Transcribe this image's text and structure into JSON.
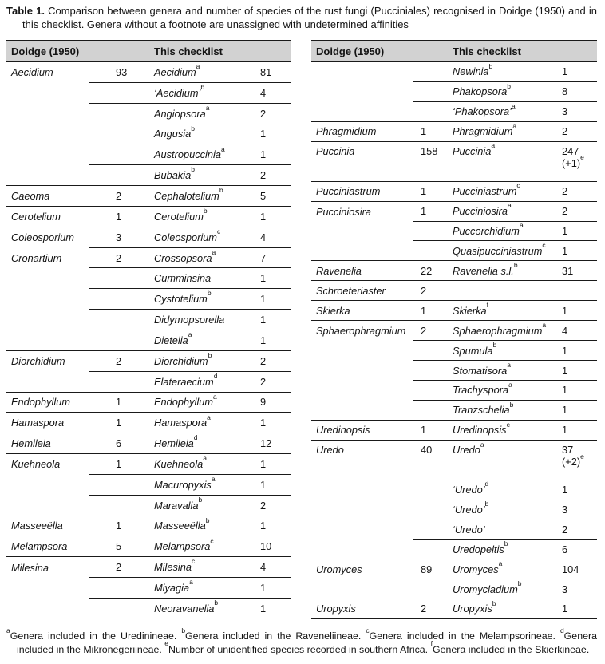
{
  "colors": {
    "header_bg": "#d2d2d2",
    "rule": "#1a1a1a",
    "text": "#141414",
    "page_bg": "#ffffff"
  },
  "caption": {
    "label": "Table 1.",
    "text": "Comparison between genera and number of species of the rust fungi (Pucciniales) recognised in Doidge (1950) and in this checklist. Genera without a footnote are unassigned with undetermined affinities"
  },
  "header": {
    "doidge": "Doidge (1950)",
    "checklist": "This checklist"
  },
  "left_table": {
    "rows": [
      {
        "d_genus": "Aecidium",
        "d_count": "93",
        "c_genus": "Aecidium",
        "c_sup": "a",
        "c_count": "81",
        "line": "partial"
      },
      {
        "d_genus": "",
        "d_count": "",
        "c_genus": "‘Aecidium’",
        "c_sup": "b",
        "c_count": "4",
        "line": "partial"
      },
      {
        "d_genus": "",
        "d_count": "",
        "c_genus": "Angiopsora",
        "c_sup": "a",
        "c_count": "2",
        "line": "partial"
      },
      {
        "d_genus": "",
        "d_count": "",
        "c_genus": "Angusia",
        "c_sup": "b",
        "c_count": "1",
        "line": "partial"
      },
      {
        "d_genus": "",
        "d_count": "",
        "c_genus": "Austropuccinia",
        "c_sup": "a",
        "c_count": "1",
        "line": "partial"
      },
      {
        "d_genus": "",
        "d_count": "",
        "c_genus": "Bubakia",
        "c_sup": "b",
        "c_count": "2",
        "line": "full"
      },
      {
        "d_genus": "Caeoma",
        "d_count": "2",
        "c_genus": "Cephalotelium",
        "c_sup": "b",
        "c_count": "5",
        "line": "full"
      },
      {
        "d_genus": "Cerotelium",
        "d_count": "1",
        "c_genus": "Cerotelium",
        "c_sup": "b",
        "c_count": "1",
        "line": "full"
      },
      {
        "d_genus": "Coleosporium",
        "d_count": "3",
        "c_genus": "Coleosporium",
        "c_sup": "c",
        "c_count": "4",
        "line": "partial"
      },
      {
        "d_genus": "Cronartium",
        "d_count": "2",
        "c_genus": "Crossopsora",
        "c_sup": "a",
        "c_count": "7",
        "line": "partial"
      },
      {
        "d_genus": "",
        "d_count": "",
        "c_genus": "Cumminsina",
        "c_sup": "",
        "c_count": "1",
        "line": "partial"
      },
      {
        "d_genus": "",
        "d_count": "",
        "c_genus": "Cystotelium",
        "c_sup": "b",
        "c_count": "1",
        "line": "partial"
      },
      {
        "d_genus": "",
        "d_count": "",
        "c_genus": "Didymopsorella",
        "c_sup": "",
        "c_count": "1",
        "line": "partial"
      },
      {
        "d_genus": "",
        "d_count": "",
        "c_genus": "Dietelia",
        "c_sup": "a",
        "c_count": "1",
        "line": "full"
      },
      {
        "d_genus": "Diorchidium",
        "d_count": "2",
        "c_genus": "Diorchidium",
        "c_sup": "b",
        "c_count": "2",
        "line": "partial"
      },
      {
        "d_genus": "",
        "d_count": "",
        "c_genus": "Elateraecium",
        "c_sup": "d",
        "c_count": "2",
        "line": "full"
      },
      {
        "d_genus": "Endophyllum",
        "d_count": "1",
        "c_genus": "Endophyllum",
        "c_sup": "a",
        "c_count": "9",
        "line": "full"
      },
      {
        "d_genus": "Hamaspora",
        "d_count": "1",
        "c_genus": "Hamaspora",
        "c_sup": "a",
        "c_count": "1",
        "line": "full"
      },
      {
        "d_genus": "Hemileia",
        "d_count": "6",
        "c_genus": "Hemileia",
        "c_sup": "d",
        "c_count": "12",
        "line": "full"
      },
      {
        "d_genus": "Kuehneola",
        "d_count": "1",
        "c_genus": "Kuehneola",
        "c_sup": "a",
        "c_count": "1",
        "line": "partial"
      },
      {
        "d_genus": "",
        "d_count": "",
        "c_genus": "Macuropyxis",
        "c_sup": "a",
        "c_count": "1",
        "line": "partial"
      },
      {
        "d_genus": "",
        "d_count": "",
        "c_genus": "Maravalia",
        "c_sup": "b",
        "c_count": "2",
        "line": "full"
      },
      {
        "d_genus": "Masseeëlla",
        "d_count": "1",
        "c_genus": "Masseeëlla",
        "c_sup": "b",
        "c_count": "1",
        "line": "full"
      },
      {
        "d_genus": "Melampsora",
        "d_count": "5",
        "c_genus": "Melampsora",
        "c_sup": "c",
        "c_count": "10",
        "line": "full"
      },
      {
        "d_genus": "Milesina",
        "d_count": "2",
        "c_genus": "Milesina",
        "c_sup": "c",
        "c_count": "4",
        "line": "partial"
      },
      {
        "d_genus": "",
        "d_count": "",
        "c_genus": "Miyagia",
        "c_sup": "a",
        "c_count": "1",
        "line": "partial"
      },
      {
        "d_genus": "",
        "d_count": "",
        "c_genus": "Neoravanelia",
        "c_sup": "b",
        "c_count": "1",
        "line": "partial"
      }
    ]
  },
  "right_table": {
    "rows": [
      {
        "d_genus": "",
        "d_count": "",
        "c_genus": "Newinia",
        "c_sup": "b",
        "c_count": "1",
        "line": "partial"
      },
      {
        "d_genus": "",
        "d_count": "",
        "c_genus": "Phakopsora",
        "c_sup": "b",
        "c_count": "8",
        "line": "partial"
      },
      {
        "d_genus": "",
        "d_count": "",
        "c_genus": "‘Phakopsora’",
        "c_sup": "a",
        "c_count": "3",
        "line": "full"
      },
      {
        "d_genus": "Phragmidium",
        "d_count": "1",
        "c_genus": "Phragmidium",
        "c_sup": "a",
        "c_count": "2",
        "line": "full"
      },
      {
        "d_genus": "Puccinia",
        "d_count": "158",
        "c_genus": "Puccinia",
        "c_sup": "a",
        "c_count": "247",
        "c_count2": "(+1)",
        "c_sup2": "e",
        "line": "full",
        "tall": true
      },
      {
        "d_genus": "Pucciniastrum",
        "d_count": "1",
        "c_genus": "Pucciniastrum",
        "c_sup": "c",
        "c_count": "2",
        "line": "full"
      },
      {
        "d_genus": "Pucciniosira",
        "d_count": "1",
        "c_genus": "Pucciniosira",
        "c_sup": "a",
        "c_count": "2",
        "line": "partial"
      },
      {
        "d_genus": "",
        "d_count": "",
        "c_genus": "Puccorchidium",
        "c_sup": "a",
        "c_count": "1",
        "line": "partial"
      },
      {
        "d_genus": "",
        "d_count": "",
        "c_genus": "Quasipucciniastrum",
        "c_sup": "c",
        "c_count": "1",
        "line": "full"
      },
      {
        "d_genus": "Ravenelia",
        "d_count": "22",
        "c_genus": "Ravenelia s.l.",
        "c_sup": "b",
        "c_count": "31",
        "line": "full"
      },
      {
        "d_genus": "Schroeteriaster",
        "d_count": "2",
        "c_genus": "",
        "c_sup": "",
        "c_count": "",
        "line": "full"
      },
      {
        "d_genus": "Skierka",
        "d_count": "1",
        "c_genus": "Skierka",
        "c_sup": "f",
        "c_count": "1",
        "line": "full"
      },
      {
        "d_genus": "Sphaerophragmium",
        "d_count": "2",
        "c_genus": "Sphaerophragmium",
        "c_sup": "a",
        "c_count": "4",
        "line": "partial"
      },
      {
        "d_genus": "",
        "d_count": "",
        "c_genus": "Spumula",
        "c_sup": "b",
        "c_count": "1",
        "line": "partial"
      },
      {
        "d_genus": "",
        "d_count": "",
        "c_genus": "Stomatisora",
        "c_sup": "a",
        "c_count": "1",
        "line": "partial"
      },
      {
        "d_genus": "",
        "d_count": "",
        "c_genus": "Trachyspora",
        "c_sup": "a",
        "c_count": "1",
        "line": "partial"
      },
      {
        "d_genus": "",
        "d_count": "",
        "c_genus": "Tranzschelia",
        "c_sup": "b",
        "c_count": "1",
        "line": "full"
      },
      {
        "d_genus": "Uredinopsis",
        "d_count": "1",
        "c_genus": "Uredinopsis",
        "c_sup": "c",
        "c_count": "1",
        "line": "full"
      },
      {
        "d_genus": "Uredo",
        "d_count": "40",
        "c_genus": "Uredo",
        "c_sup": "a",
        "c_count": "37",
        "c_count2": "(+2)",
        "c_sup2": "e",
        "line": "partial",
        "tall": true
      },
      {
        "d_genus": "",
        "d_count": "",
        "c_genus": "‘Uredo’",
        "c_sup": "d",
        "c_count": "1",
        "line": "partial"
      },
      {
        "d_genus": "",
        "d_count": "",
        "c_genus": "‘Uredo’",
        "c_sup": "b",
        "c_count": "3",
        "line": "partial"
      },
      {
        "d_genus": "",
        "d_count": "",
        "c_genus": "‘Uredo’",
        "c_sup": "",
        "c_count": "2",
        "line": "partial"
      },
      {
        "d_genus": "",
        "d_count": "",
        "c_genus": "Uredopeltis",
        "c_sup": "b",
        "c_count": "6",
        "line": "full"
      },
      {
        "d_genus": "Uromyces",
        "d_count": "89",
        "c_genus": "Uromyces",
        "c_sup": "a",
        "c_count": "104",
        "line": "partial"
      },
      {
        "d_genus": "",
        "d_count": "",
        "c_genus": "Uromycladium",
        "c_sup": "b",
        "c_count": "3",
        "line": "full"
      },
      {
        "d_genus": "Uropyxis",
        "d_count": "2",
        "c_genus": "Uropyxis",
        "c_sup": "b",
        "c_count": "1",
        "line": "full",
        "closing": true
      }
    ]
  },
  "footnotes": [
    {
      "sup": "a",
      "text": "Genera included in the Uredinineae. "
    },
    {
      "sup": "b",
      "text": "Genera included in the Raveneliineae. "
    },
    {
      "sup": "c",
      "text": "Genera included in the Melampsorineae. "
    },
    {
      "sup": "d",
      "text": "Genera included in the Mikronegeriineae. "
    },
    {
      "sup": "e",
      "text": "Number of unidentified species recorded in southern Africa. "
    },
    {
      "sup": "f",
      "text": "Genera included in the Skierkineae."
    }
  ]
}
